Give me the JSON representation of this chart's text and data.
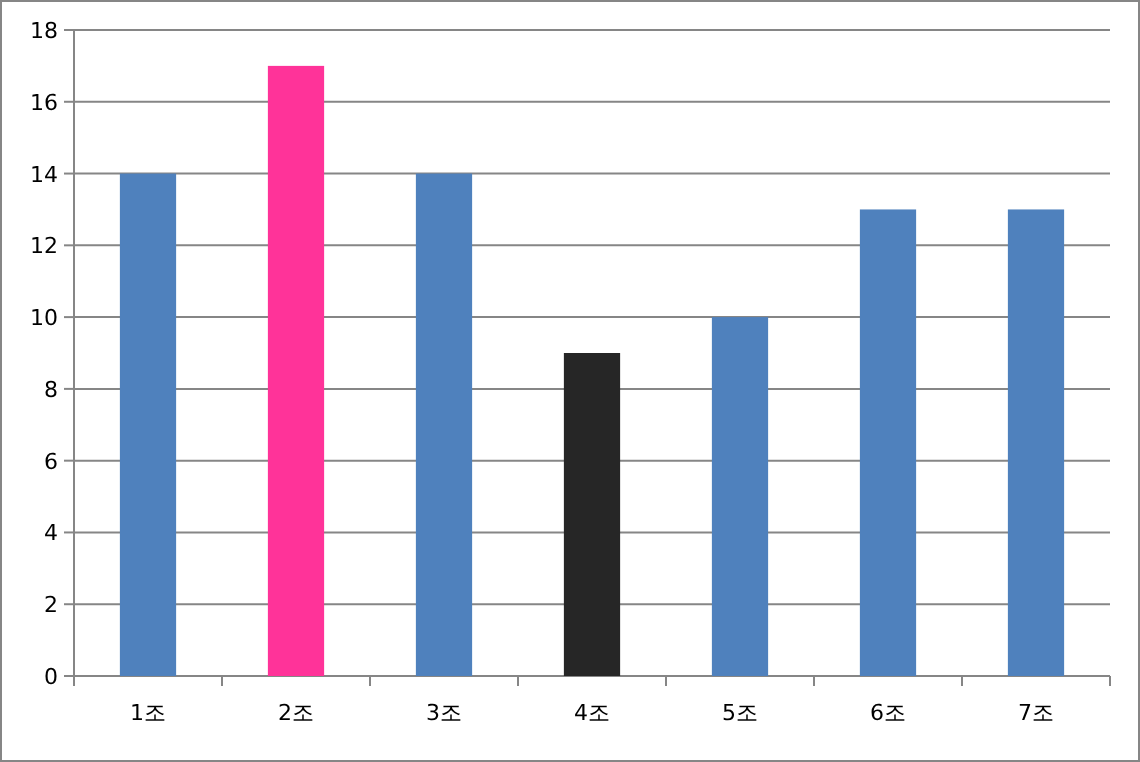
{
  "chart_data": {
    "type": "bar",
    "categories": [
      "1조",
      "2조",
      "3조",
      "4조",
      "5조",
      "6조",
      "7조"
    ],
    "values": [
      14,
      17,
      14,
      9,
      10,
      13,
      13
    ],
    "colors": [
      "#4f81bd",
      "#ff3399",
      "#4f81bd",
      "#262626",
      "#4f81bd",
      "#4f81bd",
      "#4f81bd"
    ],
    "ylim": [
      0,
      18
    ],
    "yticks": [
      0,
      2,
      4,
      6,
      8,
      10,
      12,
      14,
      16,
      18
    ],
    "grid": "y"
  }
}
